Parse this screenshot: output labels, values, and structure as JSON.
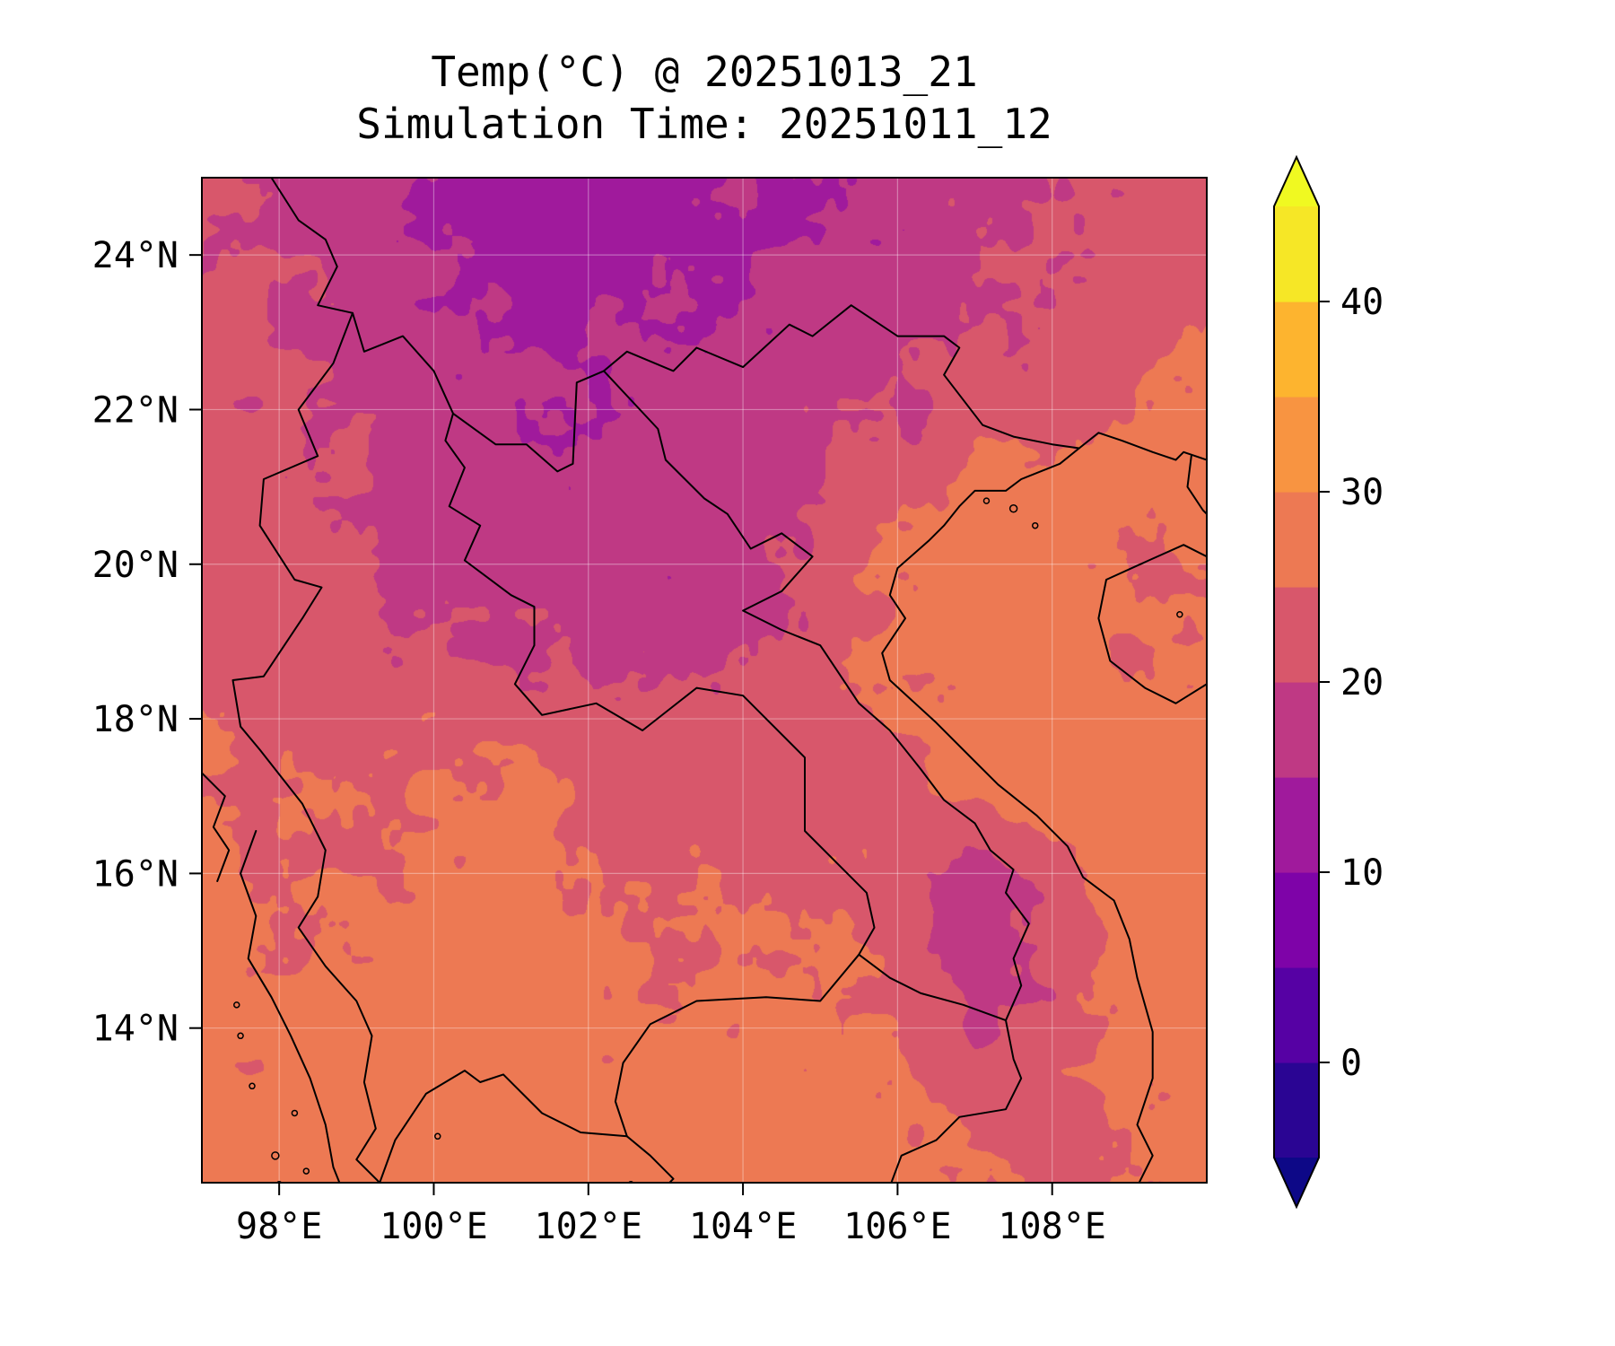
{
  "figure": {
    "title_line1": "Temp(°C) @ 20251013_21",
    "title_line2": "Simulation Time: 20251011_12"
  },
  "chart_data": {
    "type": "heatmap",
    "title": "Temp(°C) @ 20251013_21",
    "subtitle": "Simulation Time: 20251011_12",
    "units": "°C",
    "lon_range": [
      97,
      110
    ],
    "lat_range": [
      12,
      25
    ],
    "x_ticks": [
      {
        "value": 98,
        "label": "98°E"
      },
      {
        "value": 100,
        "label": "100°E"
      },
      {
        "value": 102,
        "label": "102°E"
      },
      {
        "value": 104,
        "label": "104°E"
      },
      {
        "value": 106,
        "label": "106°E"
      },
      {
        "value": 108,
        "label": "108°E"
      }
    ],
    "y_ticks": [
      {
        "value": 24,
        "label": "24°N"
      },
      {
        "value": 22,
        "label": "22°N"
      },
      {
        "value": 20,
        "label": "20°N"
      },
      {
        "value": 18,
        "label": "18°N"
      },
      {
        "value": 16,
        "label": "16°N"
      },
      {
        "value": 14,
        "label": "14°N"
      }
    ],
    "levels": [
      -5,
      0,
      5,
      10,
      15,
      20,
      25,
      30,
      35,
      40,
      45
    ],
    "band_colors": [
      "#2a0593",
      "#5601a4",
      "#7e03a8",
      "#a01a9c",
      "#bf3984",
      "#d8576b",
      "#ed7953",
      "#f89441",
      "#fdb42f",
      "#f6e726"
    ],
    "under_color": "#0d0887",
    "over_color": "#f0f921",
    "colorbar_ticks": [
      {
        "value": 0,
        "label": "0"
      },
      {
        "value": 10,
        "label": "10"
      },
      {
        "value": 20,
        "label": "20"
      },
      {
        "value": 30,
        "label": "30"
      },
      {
        "value": 40,
        "label": "40"
      }
    ],
    "grid": {
      "lons": [
        97,
        98,
        99,
        100,
        101,
        102,
        103,
        104,
        105,
        106,
        107,
        108,
        109,
        110
      ],
      "lats": [
        25,
        24,
        23,
        22,
        21,
        20,
        19,
        18,
        17,
        16,
        15,
        14,
        13,
        12
      ],
      "values": [
        [
          21,
          19,
          16.5,
          15,
          13,
          12,
          13,
          14,
          15.5,
          17,
          18,
          20,
          22,
          23
        ],
        [
          21,
          19.5,
          17,
          15.5,
          13.5,
          13,
          14,
          15,
          16,
          17.5,
          19,
          21,
          22.5,
          23.5
        ],
        [
          21.5,
          20,
          18,
          16,
          15,
          15,
          15.5,
          16,
          17,
          18,
          20,
          22,
          23,
          24
        ],
        [
          22,
          21,
          19,
          17,
          16,
          16,
          16.5,
          17,
          18.5,
          20,
          21,
          23,
          25,
          27
        ],
        [
          22,
          21.5,
          20,
          18,
          17,
          17,
          17,
          18,
          20,
          24,
          26.5,
          27.5,
          26.5,
          27
        ],
        [
          22.5,
          22,
          21,
          19,
          18,
          17.5,
          17,
          17.5,
          21,
          25.5,
          27.5,
          28,
          25,
          26
        ],
        [
          23,
          22.5,
          21.5,
          20.5,
          19.5,
          18.5,
          18,
          19,
          22,
          26,
          27.5,
          28,
          24.5,
          26
        ],
        [
          24,
          23,
          23,
          23.5,
          23,
          22,
          21.5,
          21,
          23,
          25.5,
          27.5,
          28,
          27.5,
          27.5
        ],
        [
          26,
          24,
          24.5,
          26,
          26.5,
          24,
          23,
          23.5,
          24,
          24,
          26,
          27.5,
          28,
          28
        ],
        [
          27,
          24.5,
          25,
          26.5,
          27,
          25,
          24,
          24.5,
          24,
          23,
          17.5,
          22,
          27.5,
          28
        ],
        [
          27,
          25,
          26,
          27,
          27.5,
          26,
          25,
          26,
          25.5,
          24,
          17,
          20,
          26,
          27.5
        ],
        [
          27.5,
          26,
          26.5,
          27.5,
          27,
          26,
          26,
          26.5,
          26,
          25,
          19,
          23,
          26.5,
          27.5
        ],
        [
          28,
          27,
          27.5,
          27.5,
          27,
          26.5,
          27,
          27.5,
          27,
          26,
          24,
          24.5,
          26,
          27.5
        ],
        [
          28,
          27.5,
          27.5,
          28,
          27.5,
          27,
          27.5,
          27.5,
          27.5,
          26.5,
          25.5,
          23,
          24.5,
          27
        ]
      ]
    },
    "noise": {
      "seed": 7,
      "octaves": [
        {
          "amplitude": 1.7,
          "scale": 0.45
        },
        {
          "amplitude": 0.9,
          "scale": 0.16
        }
      ]
    },
    "gridlines": {
      "color": "rgba(255,255,255,0.35)",
      "width": 1.2
    },
    "borders": [
      {
        "name": "china-border",
        "points": [
          [
            97.9,
            25.0
          ],
          [
            98.25,
            24.45
          ],
          [
            98.6,
            24.2
          ],
          [
            98.75,
            23.85
          ],
          [
            98.5,
            23.35
          ],
          [
            98.95,
            23.25
          ],
          [
            99.1,
            22.75
          ],
          [
            99.6,
            22.95
          ],
          [
            100.0,
            22.5
          ],
          [
            100.25,
            21.95
          ],
          [
            100.8,
            21.55
          ],
          [
            101.2,
            21.55
          ],
          [
            101.6,
            21.2
          ],
          [
            101.8,
            21.3
          ],
          [
            101.85,
            22.35
          ],
          [
            102.2,
            22.5
          ],
          [
            102.5,
            22.75
          ],
          [
            103.1,
            22.5
          ],
          [
            103.4,
            22.8
          ],
          [
            104.0,
            22.55
          ],
          [
            104.6,
            23.1
          ],
          [
            104.9,
            22.95
          ],
          [
            105.4,
            23.35
          ],
          [
            106.0,
            22.95
          ],
          [
            106.6,
            22.95
          ],
          [
            106.8,
            22.8
          ],
          [
            106.6,
            22.45
          ],
          [
            107.1,
            21.8
          ],
          [
            107.5,
            21.65
          ],
          [
            108.0,
            21.55
          ],
          [
            108.35,
            21.5
          ]
        ]
      },
      {
        "name": "myanmar-thailand-border",
        "points": [
          [
            98.95,
            23.25
          ],
          [
            98.7,
            22.6
          ],
          [
            98.25,
            22.0
          ],
          [
            98.5,
            21.4
          ],
          [
            97.8,
            21.1
          ],
          [
            97.75,
            20.5
          ],
          [
            98.2,
            19.8
          ],
          [
            98.55,
            19.7
          ],
          [
            98.3,
            19.3
          ],
          [
            97.8,
            18.55
          ],
          [
            97.4,
            18.5
          ],
          [
            97.5,
            17.9
          ],
          [
            97.75,
            17.6
          ],
          [
            98.3,
            16.9
          ],
          [
            98.6,
            16.3
          ],
          [
            98.5,
            15.7
          ],
          [
            98.25,
            15.3
          ],
          [
            98.6,
            14.8
          ],
          [
            99.0,
            14.35
          ],
          [
            99.2,
            13.9
          ],
          [
            99.1,
            13.3
          ],
          [
            99.25,
            12.7
          ],
          [
            99.0,
            12.3
          ],
          [
            99.3,
            12.0
          ]
        ]
      },
      {
        "name": "thailand-laos-border",
        "points": [
          [
            100.25,
            21.95
          ],
          [
            100.15,
            21.6
          ],
          [
            100.4,
            21.25
          ],
          [
            100.2,
            20.75
          ],
          [
            100.6,
            20.5
          ],
          [
            100.4,
            20.05
          ],
          [
            101.0,
            19.6
          ],
          [
            101.3,
            19.45
          ],
          [
            101.3,
            18.95
          ],
          [
            101.05,
            18.45
          ],
          [
            101.4,
            18.05
          ],
          [
            102.1,
            18.2
          ],
          [
            102.7,
            17.85
          ],
          [
            103.4,
            18.4
          ],
          [
            104.0,
            18.3
          ],
          [
            104.8,
            17.5
          ],
          [
            104.8,
            16.55
          ],
          [
            105.6,
            15.75
          ],
          [
            105.7,
            15.3
          ],
          [
            105.5,
            14.95
          ]
        ]
      },
      {
        "name": "laos-vietnam-cambodia-border",
        "points": [
          [
            102.2,
            22.5
          ],
          [
            102.9,
            21.75
          ],
          [
            103.0,
            21.35
          ],
          [
            103.5,
            20.85
          ],
          [
            103.8,
            20.65
          ],
          [
            104.1,
            20.2
          ],
          [
            104.5,
            20.4
          ],
          [
            104.9,
            20.1
          ],
          [
            104.5,
            19.65
          ],
          [
            104.0,
            19.4
          ],
          [
            104.5,
            19.15
          ],
          [
            105.0,
            18.95
          ],
          [
            105.2,
            18.65
          ],
          [
            105.5,
            18.2
          ],
          [
            105.9,
            17.85
          ],
          [
            106.3,
            17.35
          ],
          [
            106.6,
            16.95
          ],
          [
            107.0,
            16.65
          ],
          [
            107.2,
            16.3
          ],
          [
            107.5,
            16.05
          ],
          [
            107.4,
            15.75
          ],
          [
            107.7,
            15.35
          ],
          [
            107.5,
            14.9
          ],
          [
            107.6,
            14.55
          ],
          [
            107.4,
            14.1
          ],
          [
            107.5,
            13.6
          ],
          [
            107.6,
            13.35
          ],
          [
            107.4,
            12.95
          ],
          [
            106.8,
            12.85
          ],
          [
            106.5,
            12.55
          ],
          [
            106.05,
            12.35
          ],
          [
            105.9,
            11.95
          ]
        ]
      },
      {
        "name": "thailand-cambodia-laos-border",
        "points": [
          [
            102.5,
            12.6
          ],
          [
            102.35,
            13.05
          ],
          [
            102.45,
            13.55
          ],
          [
            102.8,
            14.05
          ],
          [
            103.4,
            14.35
          ],
          [
            104.3,
            14.4
          ],
          [
            105.0,
            14.35
          ],
          [
            105.5,
            14.95
          ],
          [
            105.9,
            14.65
          ],
          [
            106.3,
            14.45
          ],
          [
            106.85,
            14.3
          ],
          [
            107.4,
            14.1
          ]
        ]
      },
      {
        "name": "vietnam-coastline",
        "points": [
          [
            108.35,
            21.5
          ],
          [
            108.1,
            21.3
          ],
          [
            107.6,
            21.1
          ],
          [
            107.4,
            20.95
          ],
          [
            107.0,
            20.95
          ],
          [
            106.8,
            20.75
          ],
          [
            106.6,
            20.5
          ],
          [
            106.4,
            20.3
          ],
          [
            106.0,
            19.95
          ],
          [
            105.9,
            19.6
          ],
          [
            106.1,
            19.3
          ],
          [
            105.8,
            18.85
          ],
          [
            105.9,
            18.5
          ],
          [
            106.5,
            17.95
          ],
          [
            107.0,
            17.45
          ],
          [
            107.3,
            17.15
          ],
          [
            107.8,
            16.75
          ],
          [
            108.2,
            16.35
          ],
          [
            108.4,
            15.95
          ],
          [
            108.8,
            15.65
          ],
          [
            109.0,
            15.15
          ],
          [
            109.1,
            14.65
          ],
          [
            109.3,
            13.95
          ],
          [
            109.3,
            13.35
          ],
          [
            109.1,
            12.75
          ],
          [
            109.3,
            12.35
          ],
          [
            109.1,
            11.95
          ]
        ]
      },
      {
        "name": "gulf-of-thailand-coast",
        "points": [
          [
            99.3,
            12.0
          ],
          [
            99.5,
            12.55
          ],
          [
            99.9,
            13.15
          ],
          [
            100.4,
            13.45
          ],
          [
            100.6,
            13.3
          ],
          [
            100.9,
            13.4
          ],
          [
            101.4,
            12.9
          ],
          [
            101.9,
            12.65
          ],
          [
            102.5,
            12.6
          ],
          [
            102.8,
            12.35
          ],
          [
            103.1,
            12.05
          ],
          [
            103.0,
            11.95
          ]
        ]
      },
      {
        "name": "andaman-coast",
        "points": [
          [
            97.7,
            16.55
          ],
          [
            97.5,
            16.0
          ],
          [
            97.7,
            15.45
          ],
          [
            97.6,
            14.9
          ],
          [
            97.9,
            14.4
          ],
          [
            98.15,
            13.9
          ],
          [
            98.4,
            13.35
          ],
          [
            98.6,
            12.75
          ],
          [
            98.7,
            12.2
          ],
          [
            98.8,
            11.95
          ]
        ]
      },
      {
        "name": "mon-coast",
        "points": [
          [
            97.0,
            17.3
          ],
          [
            97.3,
            17.0
          ],
          [
            97.15,
            16.6
          ],
          [
            97.35,
            16.3
          ],
          [
            97.2,
            15.9
          ]
        ]
      },
      {
        "name": "china-coast",
        "points": [
          [
            108.35,
            21.5
          ],
          [
            108.6,
            21.7
          ],
          [
            108.9,
            21.6
          ],
          [
            109.3,
            21.45
          ],
          [
            109.6,
            21.35
          ],
          [
            109.7,
            21.45
          ],
          [
            110.0,
            21.35
          ]
        ]
      },
      {
        "name": "leizhou-peninsula",
        "points": [
          [
            109.8,
            21.4
          ],
          [
            109.75,
            21.0
          ],
          [
            109.95,
            20.7
          ],
          [
            110.0,
            20.65
          ]
        ]
      },
      {
        "name": "hainan-coastline",
        "points": [
          [
            110.0,
            20.1
          ],
          [
            109.7,
            20.25
          ],
          [
            109.25,
            20.05
          ],
          [
            108.7,
            19.8
          ],
          [
            108.6,
            19.3
          ],
          [
            108.75,
            18.75
          ],
          [
            109.2,
            18.4
          ],
          [
            109.6,
            18.2
          ],
          [
            110.0,
            18.45
          ]
        ]
      }
    ],
    "islands": [
      [
        107.5,
        20.72,
        4
      ],
      [
        107.78,
        20.5,
        3
      ],
      [
        107.15,
        20.82,
        3
      ],
      [
        109.65,
        19.35,
        3
      ],
      [
        97.95,
        12.35,
        4
      ],
      [
        98.2,
        12.9,
        3
      ],
      [
        97.65,
        13.25,
        3
      ],
      [
        98.35,
        12.15,
        3
      ],
      [
        97.5,
        13.9,
        3
      ],
      [
        97.45,
        14.3,
        3
      ],
      [
        100.05,
        12.6,
        3
      ],
      [
        102.55,
        11.98,
        3
      ],
      [
        98.0,
        11.98,
        3
      ]
    ]
  }
}
